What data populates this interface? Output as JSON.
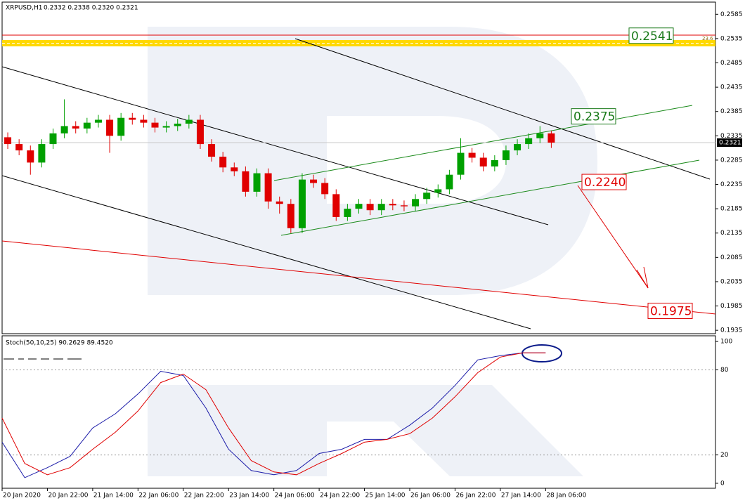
{
  "chart_data": [
    {
      "type": "candlestick",
      "title": "XRPUSD,H1",
      "subtitle": "0.2332 0.2338 0.2320 0.2321",
      "up_color": "#00a000",
      "down_color": "#e00000",
      "x": [
        2,
        6,
        10,
        14,
        18,
        22,
        26,
        30,
        34,
        38,
        42,
        46,
        50,
        54,
        58,
        62,
        66,
        70,
        74,
        78,
        82,
        86,
        90,
        94,
        98,
        102,
        106,
        110,
        114,
        118,
        122,
        126,
        130,
        134,
        138,
        142,
        146,
        150,
        154,
        158,
        162,
        166,
        170,
        174,
        178,
        182,
        186,
        190,
        194
      ],
      "open": [
        0.2332,
        0.2318,
        0.2305,
        0.228,
        0.2318,
        0.234,
        0.2355,
        0.235,
        0.2362,
        0.2368,
        0.2335,
        0.2372,
        0.2368,
        0.2362,
        0.2352,
        0.2355,
        0.236,
        0.2368,
        0.2318,
        0.2292,
        0.227,
        0.2262,
        0.222,
        0.2258,
        0.22,
        0.2195,
        0.2145,
        0.2245,
        0.2238,
        0.2215,
        0.2168,
        0.2185,
        0.2195,
        0.2182,
        0.2195,
        0.2192,
        0.219,
        0.2205,
        0.2218,
        0.2225,
        0.2255,
        0.23,
        0.229,
        0.2272,
        0.2285,
        0.2305,
        0.2318,
        0.233,
        0.234
      ],
      "high": [
        0.2342,
        0.2328,
        0.2315,
        0.2328,
        0.235,
        0.241,
        0.2365,
        0.2372,
        0.2378,
        0.2378,
        0.2382,
        0.2382,
        0.2378,
        0.2372,
        0.2365,
        0.237,
        0.2378,
        0.2378,
        0.2328,
        0.2302,
        0.228,
        0.2272,
        0.2268,
        0.2268,
        0.221,
        0.2205,
        0.2258,
        0.2255,
        0.2248,
        0.2225,
        0.2195,
        0.2205,
        0.2205,
        0.2205,
        0.2205,
        0.2202,
        0.2215,
        0.2228,
        0.2235,
        0.2265,
        0.233,
        0.231,
        0.23,
        0.2295,
        0.2315,
        0.2328,
        0.234,
        0.2355,
        0.2345
      ],
      "low": [
        0.2308,
        0.2295,
        0.2255,
        0.227,
        0.2308,
        0.233,
        0.234,
        0.234,
        0.2352,
        0.23,
        0.2325,
        0.2358,
        0.2352,
        0.2342,
        0.2342,
        0.2345,
        0.235,
        0.2308,
        0.2282,
        0.226,
        0.2252,
        0.221,
        0.221,
        0.2185,
        0.2175,
        0.2135,
        0.2135,
        0.2228,
        0.2205,
        0.216,
        0.216,
        0.2175,
        0.2172,
        0.2172,
        0.2182,
        0.218,
        0.218,
        0.2195,
        0.2208,
        0.2215,
        0.2245,
        0.228,
        0.2262,
        0.2262,
        0.2275,
        0.2295,
        0.2308,
        0.232,
        0.231
      ],
      "close": [
        0.2318,
        0.2305,
        0.228,
        0.2318,
        0.234,
        0.2355,
        0.235,
        0.2362,
        0.2368,
        0.2335,
        0.2372,
        0.2368,
        0.2362,
        0.2352,
        0.2355,
        0.236,
        0.2368,
        0.2318,
        0.2292,
        0.227,
        0.2262,
        0.222,
        0.2258,
        0.22,
        0.2195,
        0.2145,
        0.2245,
        0.2238,
        0.2215,
        0.2168,
        0.2185,
        0.2195,
        0.2182,
        0.2195,
        0.2192,
        0.219,
        0.2205,
        0.2218,
        0.2225,
        0.2255,
        0.23,
        0.229,
        0.2272,
        0.2285,
        0.2305,
        0.2318,
        0.233,
        0.234,
        0.2321
      ],
      "xlim": [
        0,
        252
      ],
      "ylim": [
        0.1928,
        0.261
      ],
      "yticks": [
        0.2585,
        0.2535,
        0.2485,
        0.2435,
        0.2385,
        0.2335,
        0.2285,
        0.2235,
        0.2185,
        0.2135,
        0.2085,
        0.2035,
        0.1985,
        0.1935
      ],
      "current_price": 0.2321,
      "fib_label": "23.6",
      "annotations": [
        {
          "value": 0.2541,
          "color": "#1a7a1a"
        },
        {
          "value": 0.2375,
          "color": "#1a7a1a"
        },
        {
          "value": 0.224,
          "label": "0.2240",
          "color": "#e00000"
        },
        {
          "value": 0.1975,
          "color": "#e00000"
        }
      ]
    },
    {
      "type": "line",
      "title": "Stoch(50,10,25) 90.2629 89.4520",
      "x": [
        0,
        8,
        16,
        24,
        32,
        40,
        48,
        56,
        64,
        72,
        80,
        88,
        96,
        104,
        112,
        120,
        128,
        136,
        144,
        152,
        160,
        168,
        176,
        184,
        192
      ],
      "series": [
        {
          "color": "#1a1aa8",
          "values": [
            29,
            4,
            11,
            19,
            39,
            49,
            63,
            79,
            76,
            53,
            24,
            9,
            6,
            9,
            21,
            24,
            31,
            31,
            41,
            53,
            69,
            87,
            90,
            92,
            92
          ]
        },
        {
          "color": "#e00000",
          "values": [
            46,
            14,
            6,
            11,
            24,
            36,
            51,
            71,
            77,
            66,
            39,
            16,
            8,
            6,
            14,
            21,
            29,
            31,
            35,
            46,
            61,
            78,
            89,
            92,
            92
          ]
        }
      ],
      "xlim": [
        0,
        252
      ],
      "ylim": [
        -3.5,
        104
      ],
      "yticks": [
        100,
        80,
        20,
        0
      ],
      "levels": [
        80,
        20
      ],
      "xticks": [
        {
          "value": 0,
          "label": "20 Jan 2020"
        },
        {
          "value": 16,
          "label": "20 Jan 22:00"
        },
        {
          "value": 32,
          "label": "21 Jan 14:00"
        },
        {
          "value": 48,
          "label": "22 Jan 06:00"
        },
        {
          "value": 64,
          "label": "22 Jan 22:00"
        },
        {
          "value": 80,
          "label": "23 Jan 14:00"
        },
        {
          "value": 96,
          "label": "24 Jan 06:00"
        },
        {
          "value": 112,
          "label": "24 Jan 22:00"
        },
        {
          "value": 128,
          "label": "25 Jan 14:00"
        },
        {
          "value": 144,
          "label": "26 Jan 06:00"
        },
        {
          "value": 160,
          "label": "26 Jan 22:00"
        },
        {
          "value": 176,
          "label": "27 Jan 14:00"
        },
        {
          "value": 192,
          "label": "28 Jan 06:00"
        }
      ]
    }
  ]
}
